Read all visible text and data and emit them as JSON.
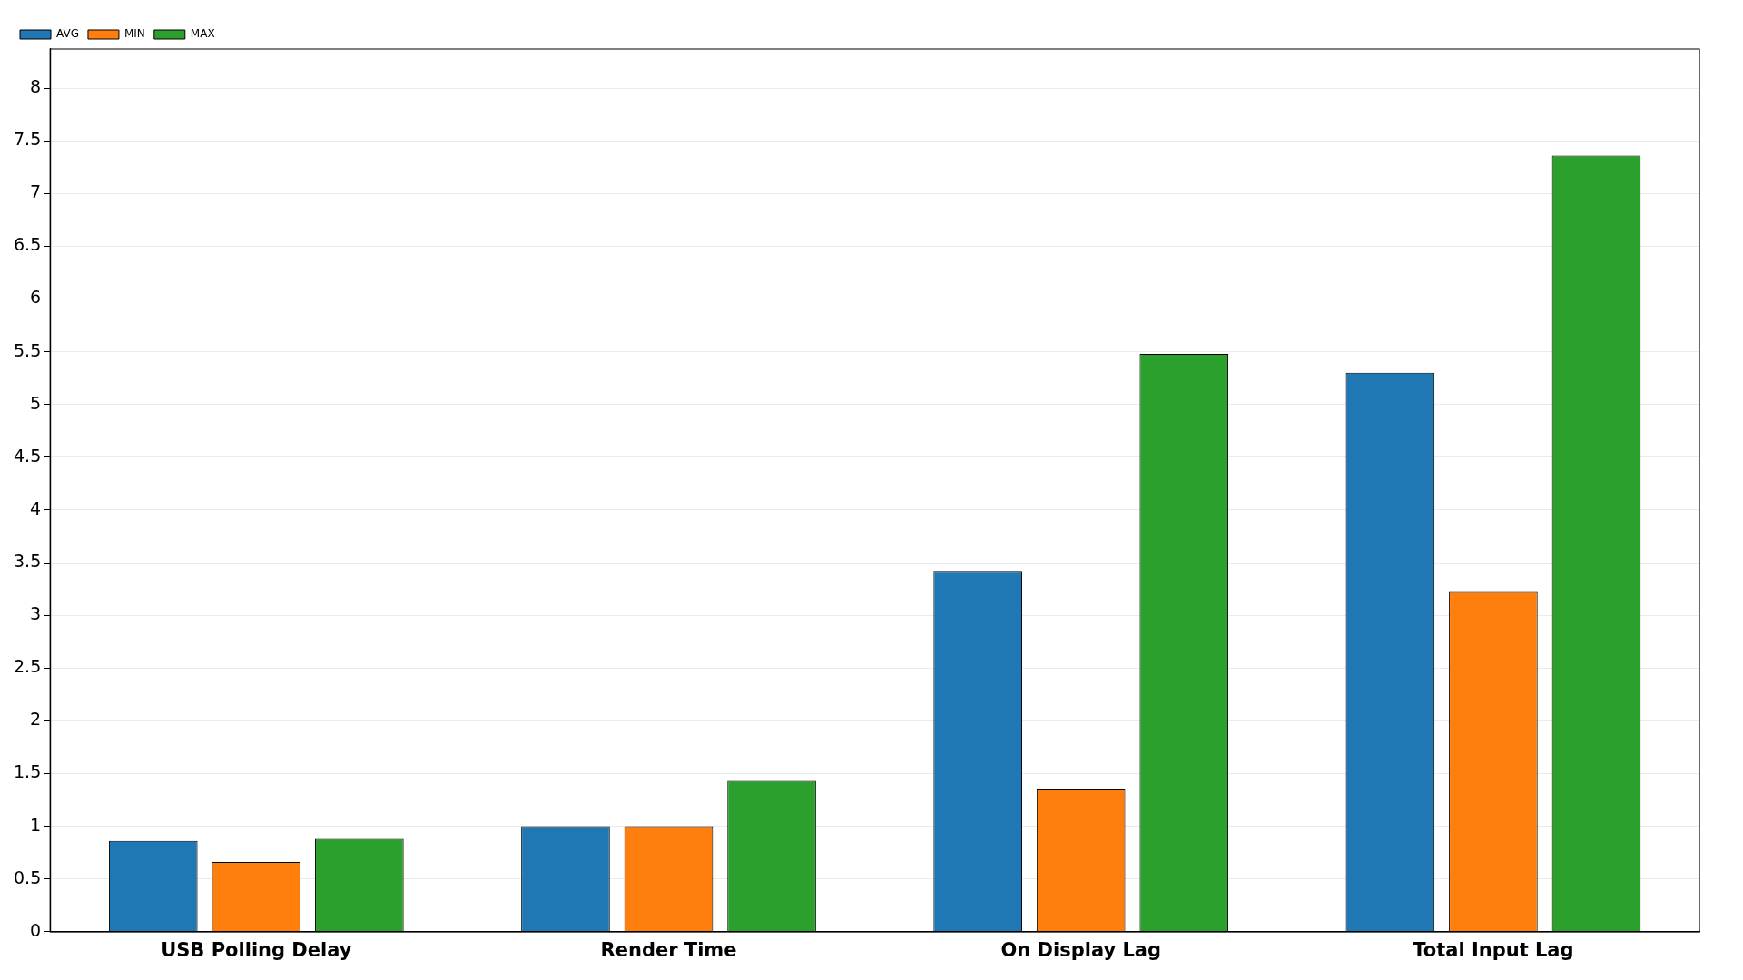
{
  "chart_data": {
    "type": "bar",
    "categories": [
      "USB Polling Delay",
      "Render Time",
      "On Display Lag",
      "Total Input Lag"
    ],
    "series": [
      {
        "name": "AVG",
        "color": "#1f77b4",
        "values": [
          0.86,
          1.0,
          3.42,
          5.3
        ]
      },
      {
        "name": "MIN",
        "color": "#ff7f0e",
        "values": [
          0.66,
          1.0,
          1.35,
          3.23
        ]
      },
      {
        "name": "MAX",
        "color": "#2ca02c",
        "values": [
          0.88,
          1.43,
          5.48,
          7.36
        ]
      }
    ],
    "ylim": [
      0,
      8.37
    ],
    "yticks": [
      0,
      0.5,
      1,
      1.5,
      2,
      2.5,
      3,
      3.5,
      4,
      4.5,
      5,
      5.5,
      6,
      6.5,
      7,
      7.5,
      8
    ],
    "grid": "y",
    "legend": "top left"
  }
}
